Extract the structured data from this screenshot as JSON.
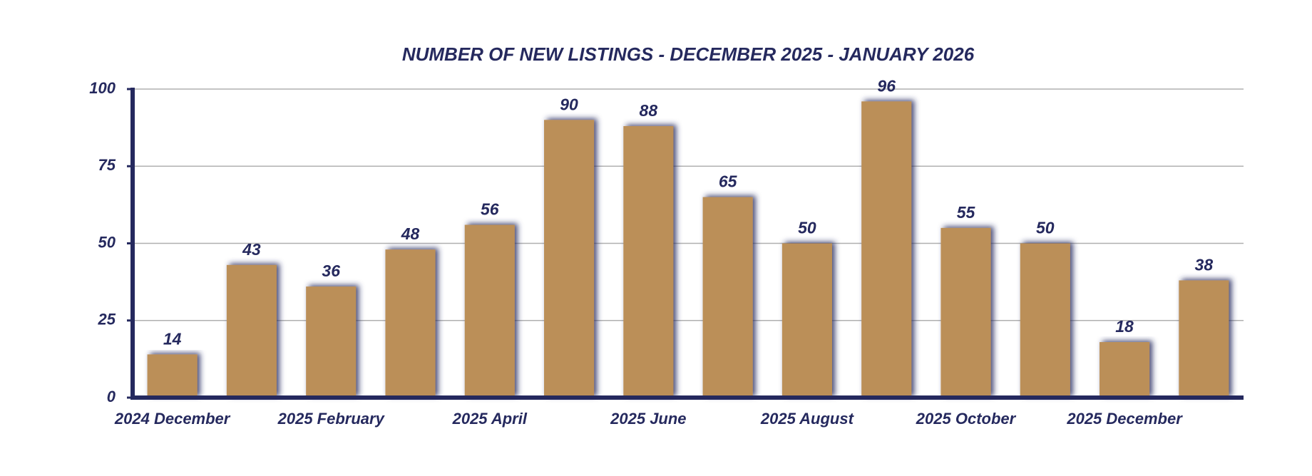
{
  "chart_data": {
    "type": "bar",
    "title": "NUMBER OF NEW LISTINGS - DECEMBER 2025 - JANUARY 2026",
    "categories": [
      "2024 December",
      null,
      "2025 February",
      null,
      "2025 April",
      null,
      "2025 June",
      null,
      "2025 August",
      null,
      "2025 October",
      null,
      "2025 December",
      null
    ],
    "values": [
      14,
      43,
      36,
      48,
      56,
      90,
      88,
      65,
      50,
      96,
      55,
      50,
      18,
      38
    ],
    "color": "#bb8f58",
    "axis_color": "#25295e",
    "ylim": [
      0,
      100
    ],
    "yticks": [
      0,
      25,
      50,
      75,
      100
    ],
    "grid": true
  }
}
